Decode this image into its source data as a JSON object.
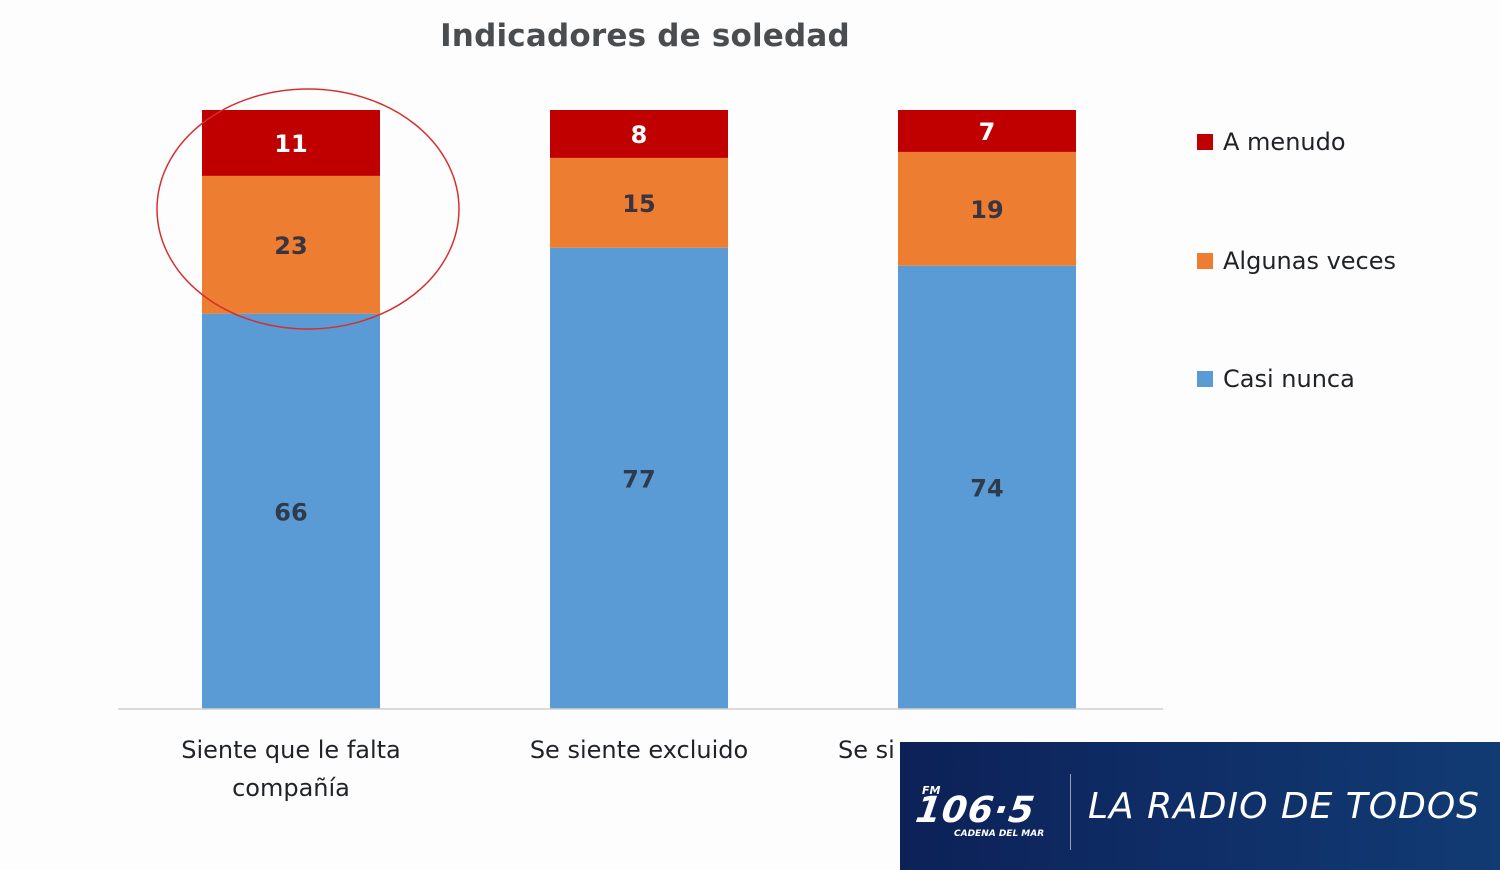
{
  "chart_data": {
    "type": "bar",
    "stacked": true,
    "title": "Indicadores de soledad",
    "xlabel": "",
    "ylabel": "",
    "ylim": [
      0,
      100
    ],
    "grid": false,
    "legend_position": "right",
    "categories": [
      "Siente que le falta compañía",
      "Se siente excluido",
      "Se si"
    ],
    "category_lines": [
      [
        "Siente que le falta",
        "compañía"
      ],
      [
        "Se siente excluido"
      ],
      [
        "Se si"
      ]
    ],
    "series": [
      {
        "name": "Casi nunca",
        "color": "#5b9bd5",
        "label_color": "#2f3a4a",
        "values": [
          66,
          77,
          74
        ]
      },
      {
        "name": "Algunas veces",
        "color": "#ed7d31",
        "label_color": "#3a3340",
        "values": [
          23,
          15,
          19
        ]
      },
      {
        "name": "A menudo",
        "color": "#c00000",
        "label_color": "#ffffff",
        "values": [
          11,
          8,
          7
        ]
      }
    ],
    "legend_order": [
      "A menudo",
      "Algunas veces",
      "Casi nunca"
    ],
    "annotation": {
      "type": "ellipse",
      "color": "#d62f2f",
      "target": "Siente que le falta compañía (A menudo + Algunas veces)"
    }
  },
  "banner": {
    "station_prefix": "FM",
    "frequency": "106·5",
    "network": "CADENA DEL MAR",
    "slogan": "LA RADIO DE TODOS"
  }
}
